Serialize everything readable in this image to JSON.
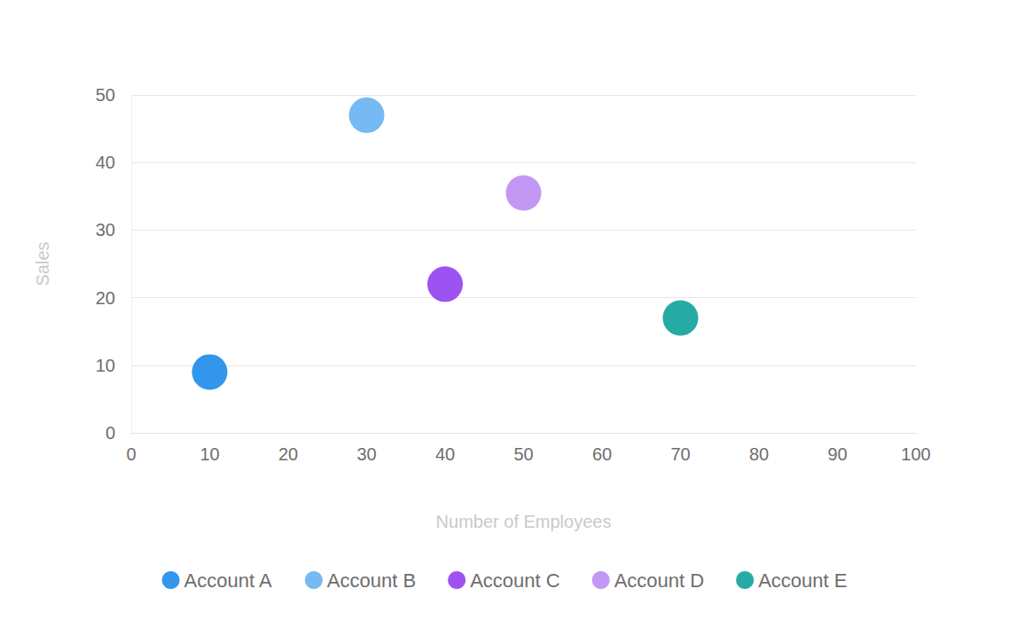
{
  "chart_data": {
    "type": "scatter",
    "x_label": "Number of Employees",
    "y_label": "Sales",
    "xlim": [
      0,
      100
    ],
    "xticks": [
      0,
      10,
      20,
      30,
      40,
      50,
      60,
      70,
      80,
      90,
      100
    ],
    "ylim": [
      0,
      50
    ],
    "yticks": [
      0,
      10,
      20,
      30,
      40,
      50
    ],
    "grid": true,
    "legend": "bottom",
    "marker": "circle",
    "series": [
      {
        "name": "Account A",
        "color": "#3296ed",
        "x": [
          10
        ],
        "values": [
          9
        ]
      },
      {
        "name": "Account B",
        "color": "#77b9f2",
        "x": [
          30
        ],
        "values": [
          47
        ]
      },
      {
        "name": "Account C",
        "color": "#9d53f2",
        "x": [
          40
        ],
        "values": [
          22
        ]
      },
      {
        "name": "Account D",
        "color": "#c398f5",
        "x": [
          50
        ],
        "values": [
          35.5
        ]
      },
      {
        "name": "Account E",
        "color": "#26aba4",
        "x": [
          70
        ],
        "values": [
          17
        ]
      }
    ]
  }
}
